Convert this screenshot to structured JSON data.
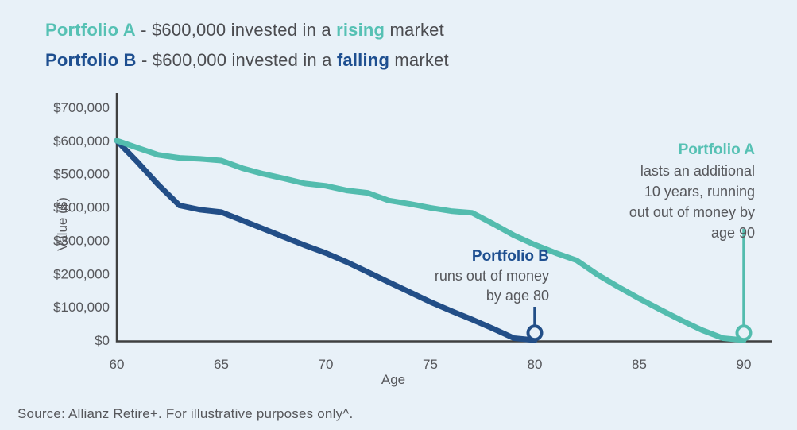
{
  "header": {
    "line_a": {
      "name": "Portfolio A",
      "sep": " - ",
      "body": "$600,000 invested in a ",
      "highlight": "rising",
      "tail": " market"
    },
    "line_b": {
      "name": "Portfolio B",
      "sep": " - ",
      "body": "$600,000 invested in a ",
      "highlight": "falling",
      "tail": " market"
    }
  },
  "annotations": {
    "portfolio_b": {
      "title": "Portfolio B",
      "line1": "runs out of money",
      "line2": "by age 80"
    },
    "portfolio_a": {
      "title": "Portfolio A",
      "line1": "lasts an additional",
      "line2": "10 years, running",
      "line3": "out out of money by",
      "line4": "age 90"
    }
  },
  "source": "Source: Allianz Retire+. For illustrative purposes only^.",
  "colors": {
    "background": "#E8F1F8",
    "teal": "#56C1B4",
    "navy": "#1E4F90",
    "teal_line": "#53BCAE",
    "navy_line": "#224E87",
    "gray_text": "#56575B",
    "axis": "#3F4040"
  },
  "chart_data": {
    "type": "line",
    "title": "",
    "xlabel": "Age",
    "ylabel": "Value ($)",
    "xlim": [
      60,
      91.4
    ],
    "ylim": [
      0,
      700000
    ],
    "grid": false,
    "x_ticks": [
      60,
      65,
      70,
      75,
      80,
      85,
      90
    ],
    "y_ticks": [
      {
        "value": 0,
        "label": "$0"
      },
      {
        "value": 100000,
        "label": "$100,000"
      },
      {
        "value": 200000,
        "label": "$200,000"
      },
      {
        "value": 300000,
        "label": "$300,000"
      },
      {
        "value": 400000,
        "label": "$400,000"
      },
      {
        "value": 500000,
        "label": "$500,000"
      },
      {
        "value": 600000,
        "label": "$600,000"
      },
      {
        "value": 700000,
        "label": "$700,000"
      }
    ],
    "series": [
      {
        "name": "Portfolio A",
        "color": "#53BCAE",
        "x": [
          60,
          61,
          62,
          63,
          64,
          65,
          66,
          67,
          68,
          69,
          70,
          71,
          72,
          73,
          74,
          75,
          76,
          77,
          78,
          79,
          80,
          81,
          82,
          83,
          84,
          85,
          86,
          87,
          88,
          89,
          90
        ],
        "values": [
          600000,
          578000,
          557000,
          548000,
          545000,
          540000,
          517000,
          500000,
          486000,
          471000,
          464000,
          450000,
          443000,
          420000,
          410000,
          398000,
          388000,
          383000,
          350000,
          315000,
          287000,
          262000,
          240000,
          197000,
          160000,
          125000,
          92000,
          60000,
          30000,
          6000,
          0
        ]
      },
      {
        "name": "Portfolio B",
        "color": "#224E87",
        "x": [
          60,
          61,
          62,
          63,
          64,
          65,
          66,
          67,
          68,
          69,
          70,
          71,
          72,
          73,
          74,
          75,
          76,
          77,
          78,
          79,
          80
        ],
        "values": [
          600000,
          535000,
          466000,
          405000,
          392000,
          385000,
          360000,
          335000,
          310000,
          285000,
          262000,
          235000,
          205000,
          175000,
          145000,
          115000,
          88000,
          62000,
          35000,
          6000,
          0
        ]
      }
    ],
    "markers": [
      {
        "id": "portfolio-b-end",
        "series": "Portfolio B",
        "x": 80,
        "value": 22000,
        "color": "#224E87"
      },
      {
        "id": "portfolio-a-end",
        "series": "Portfolio A",
        "x": 90,
        "value": 22000,
        "color": "#53BCAE"
      }
    ]
  }
}
